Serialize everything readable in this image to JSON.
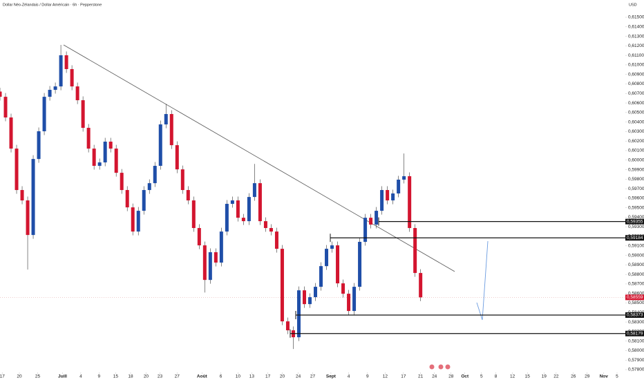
{
  "chart_data": {
    "type": "candlestick",
    "title": "Dollar Néo-Zélandais / Dollar Américain · 6h · Pepperstone",
    "currency": "USD",
    "up_color": "#1f4ea8",
    "down_color": "#d3152f",
    "x": [
      0,
      1,
      2,
      3,
      4,
      5,
      6,
      7,
      8,
      9,
      10,
      11,
      12,
      13,
      14,
      15,
      16,
      17,
      18,
      19,
      20,
      21,
      22,
      23,
      24,
      25,
      26,
      27,
      28,
      29,
      30,
      31,
      32,
      33,
      34,
      35,
      36,
      37,
      38,
      39,
      40,
      41,
      42,
      43,
      44,
      45,
      46,
      47,
      48,
      49,
      50,
      51,
      52,
      53,
      54,
      55,
      56,
      57,
      58,
      59,
      60,
      61,
      62,
      63,
      64,
      65,
      66,
      67,
      68,
      69,
      70,
      71,
      72,
      73,
      74,
      75,
      76
    ],
    "open": [
      0.6072,
      0.60665,
      0.60448,
      0.60121,
      0.59686,
      0.59577,
      0.59214,
      0.60012,
      0.60303,
      0.60665,
      0.60738,
      0.60774,
      0.61101,
      0.60956,
      0.60774,
      0.60629,
      0.60339,
      0.60121,
      0.5994,
      0.59976,
      0.60194,
      0.60121,
      0.59867,
      0.59686,
      0.59504,
      0.5925,
      0.59468,
      0.59686,
      0.59758,
      0.5994,
      0.60375,
      0.60484,
      0.60157,
      0.59903,
      0.59686,
      0.59577,
      0.59287,
      0.59105,
      0.58742,
      0.59033,
      0.58924,
      0.5925,
      0.59541,
      0.59577,
      0.59395,
      0.59359,
      0.59613,
      0.59758,
      0.59359,
      0.59287,
      0.5925,
      0.59069,
      0.58307,
      0.58213,
      0.5814,
      0.58633,
      0.58488,
      0.58561,
      0.5867,
      0.58887,
      0.59069,
      0.59105,
      0.58706,
      0.58597,
      0.58416,
      0.5867,
      0.59142,
      0.59395,
      0.59323,
      0.59468,
      0.59686,
      0.59577,
      0.5965,
      0.59795,
      0.59831,
      0.59287,
      0.58815
    ],
    "high": [
      0.6076,
      0.60705,
      0.60488,
      0.60161,
      0.59726,
      0.59617,
      0.60052,
      0.60343,
      0.60705,
      0.60778,
      0.60814,
      0.6121,
      0.61141,
      0.60996,
      0.60814,
      0.60669,
      0.60379,
      0.60161,
      0.60016,
      0.60234,
      0.60234,
      0.60161,
      0.59907,
      0.59726,
      0.59544,
      0.59508,
      0.59726,
      0.59798,
      0.5998,
      0.60415,
      0.6059,
      0.60524,
      0.60197,
      0.59943,
      0.59726,
      0.59617,
      0.59327,
      0.59145,
      0.59073,
      0.59073,
      0.5929,
      0.59581,
      0.59617,
      0.59617,
      0.59435,
      0.59653,
      0.5996,
      0.59798,
      0.59399,
      0.59327,
      0.5929,
      0.59109,
      0.58347,
      0.58253,
      0.58673,
      0.58673,
      0.58601,
      0.5871,
      0.58927,
      0.59109,
      0.59145,
      0.59145,
      0.58746,
      0.58637,
      0.5871,
      0.59182,
      0.59435,
      0.59435,
      0.59508,
      0.59726,
      0.59726,
      0.5969,
      0.59835,
      0.6007,
      0.59871,
      0.59327,
      0.58855
    ],
    "low": [
      0.60625,
      0.60408,
      0.60081,
      0.59646,
      0.59537,
      0.58851,
      0.59174,
      0.59972,
      0.60263,
      0.60625,
      0.60698,
      0.60734,
      0.60916,
      0.60734,
      0.60589,
      0.60299,
      0.60081,
      0.599,
      0.599,
      0.59936,
      0.60081,
      0.59827,
      0.59646,
      0.59464,
      0.5921,
      0.5921,
      0.59428,
      0.59646,
      0.59718,
      0.599,
      0.60335,
      0.60117,
      0.59863,
      0.59646,
      0.59537,
      0.59247,
      0.59065,
      0.5861,
      0.58702,
      0.58884,
      0.58884,
      0.5921,
      0.59501,
      0.59355,
      0.59319,
      0.59319,
      0.59573,
      0.59319,
      0.59247,
      0.5921,
      0.59029,
      0.58267,
      0.58173,
      0.58017,
      0.581,
      0.58448,
      0.58448,
      0.58521,
      0.5863,
      0.58847,
      0.59029,
      0.58666,
      0.58557,
      0.58376,
      0.58376,
      0.5863,
      0.59102,
      0.59283,
      0.59283,
      0.59428,
      0.59537,
      0.59537,
      0.5961,
      0.59755,
      0.59247,
      0.58775,
      0.58519
    ],
    "close": [
      0.60665,
      0.60448,
      0.60121,
      0.59686,
      0.59577,
      0.59214,
      0.60012,
      0.60303,
      0.60665,
      0.60738,
      0.60774,
      0.61101,
      0.60956,
      0.60774,
      0.60629,
      0.60339,
      0.60121,
      0.5994,
      0.59976,
      0.60194,
      0.60121,
      0.59867,
      0.59686,
      0.59504,
      0.5925,
      0.59468,
      0.59686,
      0.59758,
      0.5994,
      0.60375,
      0.60484,
      0.60157,
      0.59903,
      0.59686,
      0.59577,
      0.59287,
      0.59105,
      0.58742,
      0.59033,
      0.58924,
      0.5925,
      0.59541,
      0.59577,
      0.59395,
      0.59359,
      0.59613,
      0.59758,
      0.59359,
      0.59287,
      0.5925,
      0.59069,
      0.58307,
      0.58213,
      0.5814,
      0.58633,
      0.58488,
      0.58561,
      0.5867,
      0.58887,
      0.59069,
      0.59105,
      0.58706,
      0.58597,
      0.58416,
      0.5867,
      0.59142,
      0.59395,
      0.59323,
      0.59468,
      0.59686,
      0.59577,
      0.5965,
      0.59795,
      0.59831,
      0.59287,
      0.58815,
      0.58559
    ],
    "xlim": [
      0,
      113
    ],
    "xticks": [
      {
        "value": 0.4,
        "label": "17"
      },
      {
        "value": 3.5,
        "label": "20"
      },
      {
        "value": 6.8,
        "label": "25"
      },
      {
        "value": 11.3,
        "label": "Juill"
      },
      {
        "value": 14.6,
        "label": "4"
      },
      {
        "value": 17.9,
        "label": "9"
      },
      {
        "value": 20.9,
        "label": "15"
      },
      {
        "value": 23.6,
        "label": "18"
      },
      {
        "value": 26.4,
        "label": "20"
      },
      {
        "value": 28.9,
        "label": "23"
      },
      {
        "value": 32,
        "label": "27"
      },
      {
        "value": 36.5,
        "label": "Août"
      },
      {
        "value": 39.9,
        "label": "6"
      },
      {
        "value": 43,
        "label": "10"
      },
      {
        "value": 45.5,
        "label": "13"
      },
      {
        "value": 48.4,
        "label": "17"
      },
      {
        "value": 51,
        "label": "20"
      },
      {
        "value": 53.9,
        "label": "24"
      },
      {
        "value": 56.5,
        "label": "27"
      },
      {
        "value": 59.8,
        "label": "Sept"
      },
      {
        "value": 63,
        "label": "4"
      },
      {
        "value": 66.4,
        "label": "9"
      },
      {
        "value": 69.6,
        "label": "12"
      },
      {
        "value": 72.9,
        "label": "17"
      },
      {
        "value": 76,
        "label": "21"
      },
      {
        "value": 78.5,
        "label": "24"
      },
      {
        "value": 81.5,
        "label": "28"
      },
      {
        "value": 84,
        "label": "Oct"
      },
      {
        "value": 87,
        "label": "5"
      },
      {
        "value": 89.6,
        "label": "8"
      },
      {
        "value": 92.6,
        "label": "12"
      },
      {
        "value": 95.3,
        "label": "15"
      },
      {
        "value": 98.3,
        "label": "19"
      },
      {
        "value": 100.5,
        "label": "22"
      },
      {
        "value": 103.6,
        "label": "26"
      },
      {
        "value": 106.1,
        "label": "29"
      },
      {
        "value": 109.1,
        "label": "Nov"
      },
      {
        "value": 111.5,
        "label": "5"
      }
    ],
    "ylim": [
      0.578,
      0.615
    ],
    "yticks": [
      {
        "value": 0.578,
        "label": "0,57800"
      },
      {
        "value": 0.579,
        "label": "0,57900"
      },
      {
        "value": 0.58,
        "label": "0,58000"
      },
      {
        "value": 0.581,
        "label": "0,58100"
      },
      {
        "value": 0.582,
        "label": "0,58200"
      },
      {
        "value": 0.583,
        "label": "0,58300"
      },
      {
        "value": 0.584,
        "label": "0,58400"
      },
      {
        "value": 0.585,
        "label": "0,58500"
      },
      {
        "value": 0.586,
        "label": "0,58600"
      },
      {
        "value": 0.587,
        "label": "0,58700"
      },
      {
        "value": 0.588,
        "label": "0,58800"
      },
      {
        "value": 0.589,
        "label": "0,58900"
      },
      {
        "value": 0.59,
        "label": "0,59000"
      },
      {
        "value": 0.591,
        "label": "0,59100"
      },
      {
        "value": 0.592,
        "label": "0,59200"
      },
      {
        "value": 0.593,
        "label": "0,59300"
      },
      {
        "value": 0.594,
        "label": "0,59400"
      },
      {
        "value": 0.595,
        "label": "0,59500"
      },
      {
        "value": 0.596,
        "label": "0,59600"
      },
      {
        "value": 0.597,
        "label": "0,59700"
      },
      {
        "value": 0.598,
        "label": "0,59800"
      },
      {
        "value": 0.599,
        "label": "0,59900"
      },
      {
        "value": 0.6,
        "label": "0,60000"
      },
      {
        "value": 0.601,
        "label": "0,60100"
      },
      {
        "value": 0.602,
        "label": "0,60200"
      },
      {
        "value": 0.603,
        "label": "0,60300"
      },
      {
        "value": 0.604,
        "label": "0,60400"
      },
      {
        "value": 0.605,
        "label": "0,60500"
      },
      {
        "value": 0.606,
        "label": "0,60600"
      },
      {
        "value": 0.607,
        "label": "0,60700"
      },
      {
        "value": 0.608,
        "label": "0,60800"
      },
      {
        "value": 0.609,
        "label": "0,60900"
      },
      {
        "value": 0.61,
        "label": "0,61000"
      },
      {
        "value": 0.611,
        "label": "0,61100"
      },
      {
        "value": 0.612,
        "label": "0,61200"
      },
      {
        "value": 0.613,
        "label": "0,61300"
      },
      {
        "value": 0.614,
        "label": "0,61400"
      },
      {
        "value": 0.615,
        "label": "0,61500"
      }
    ],
    "levels": [
      0.59355,
      0.59184,
      0.58373,
      0.58179
    ],
    "level_labels": [
      "0,59355",
      "0,59184",
      "0,58373",
      "0,58179"
    ],
    "last_price": 0.58559,
    "last_price_label": "0,58559",
    "last_price_color": "#d3152f"
  }
}
